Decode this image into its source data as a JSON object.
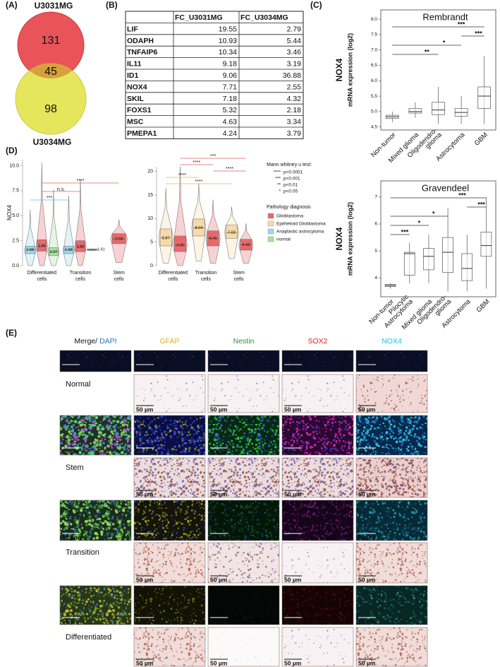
{
  "panel_labels": {
    "a": "(A)",
    "b": "(B)",
    "c": "(C)",
    "d": "(D)",
    "e": "(E)"
  },
  "venn": {
    "sets": [
      {
        "name": "U3031MG",
        "color": "#e8545a",
        "only": 131
      },
      {
        "name": "U3034MG",
        "color": "#e6e65c",
        "only": 98
      }
    ],
    "overlap": 45,
    "overlap_color": "#d8a03a"
  },
  "table": {
    "columns": [
      "FC_U3031MG",
      "FC_U3034MG"
    ],
    "rows": [
      {
        "gene": "LIF",
        "values": [
          19.55,
          2.79
        ]
      },
      {
        "gene": "ODAPH",
        "values": [
          10.93,
          5.44
        ]
      },
      {
        "gene": "TNFAIP6",
        "values": [
          10.34,
          3.46
        ]
      },
      {
        "gene": "IL11",
        "values": [
          9.18,
          3.19
        ]
      },
      {
        "gene": "ID1",
        "values": [
          9.06,
          36.88
        ]
      },
      {
        "gene": "NOX4",
        "values": [
          7.71,
          2.55
        ]
      },
      {
        "gene": "SKIL",
        "values": [
          7.18,
          4.32
        ]
      },
      {
        "gene": "FOXS1",
        "values": [
          5.32,
          2.18
        ]
      },
      {
        "gene": "MSC",
        "values": [
          4.63,
          3.34
        ]
      },
      {
        "gene": "PMEPA1",
        "values": [
          4.24,
          3.79
        ]
      }
    ]
  },
  "chart_data": [
    {
      "type": "violin",
      "ylabel": "NOX4",
      "ylim": [
        0,
        10.6
      ],
      "yticks": [
        {
          "value": 0,
          "label": "0.0"
        },
        {
          "value": 2.5,
          "label": "2.5"
        },
        {
          "value": 5,
          "label": "5.0"
        },
        {
          "value": 7.5,
          "label": "7.5"
        },
        {
          "value": 10,
          "label": "10.0"
        }
      ],
      "categories": [
        [
          "Differentiated",
          "cells"
        ],
        [
          "Transition",
          "cells"
        ],
        [
          "Stem",
          "cells"
        ]
      ],
      "violins": [
        {
          "category": 0,
          "series": 2,
          "min": 0,
          "q1": 1.2,
          "median": 1.58,
          "q3": 1.95,
          "max": 5.6
        },
        {
          "category": 0,
          "series": 0,
          "min": 0,
          "q1": 1.45,
          "median": 1.96,
          "q3": 2.6,
          "max": 10.3
        },
        {
          "category": 0,
          "series": 3,
          "min": 0,
          "q1": 1.0,
          "median": 1.37,
          "q3": 1.8,
          "max": 7.6
        },
        {
          "category": 1,
          "series": 2,
          "min": 0,
          "q1": 1.2,
          "median": 1.58,
          "q3": 1.95,
          "max": 7.0
        },
        {
          "category": 1,
          "series": 0,
          "min": 0,
          "q1": 1.4,
          "median": 1.89,
          "q3": 2.5,
          "max": 8.6
        },
        {
          "category": 1,
          "series": 3,
          "min": 1.5,
          "q1": 1.55,
          "median": 1.61,
          "q3": 1.67,
          "max": 1.7
        },
        {
          "category": 2,
          "series": 0,
          "min": 0.3,
          "q1": 2.2,
          "median": 2.68,
          "q3": 3.2,
          "max": 4.6
        }
      ],
      "comparisons": [
        {
          "from": 1,
          "to": 6,
          "label": "****",
          "color": "#e06262"
        },
        {
          "from": 1,
          "to": 4,
          "label": "n.s.",
          "color": "#e06262"
        },
        {
          "from": 0,
          "to": 3,
          "label": "***",
          "color": "#4cc4e0"
        }
      ]
    },
    {
      "type": "violin",
      "ylim": [
        0,
        21
      ],
      "yticks": [
        0,
        5,
        10,
        15,
        20
      ],
      "categories": [
        [
          "Differentiated",
          "cells"
        ],
        [
          "Transition",
          "cells"
        ],
        [
          "Stem",
          "cells"
        ]
      ],
      "violins": [
        {
          "category": 0,
          "series": 1,
          "min": 0.5,
          "q1": 4.2,
          "median": 5.87,
          "q3": 7.8,
          "max": 16.5
        },
        {
          "category": 0,
          "series": 0,
          "min": 0,
          "q1": 3.0,
          "median": 4.36,
          "q3": 6.3,
          "max": 21
        },
        {
          "category": 1,
          "series": 1,
          "min": 1,
          "q1": 6.3,
          "median": 8.04,
          "q3": 9.9,
          "max": 17.5
        },
        {
          "category": 1,
          "series": 0,
          "min": 0.5,
          "q1": 4.2,
          "median": 5.76,
          "q3": 7.4,
          "max": 14
        },
        {
          "category": 2,
          "series": 1,
          "min": 1.5,
          "q1": 5.8,
          "median": 7.02,
          "q3": 8.6,
          "max": 12.5
        },
        {
          "category": 2,
          "series": 0,
          "min": 0.5,
          "q1": 3.3,
          "median": 4.42,
          "q3": 5.6,
          "max": 9
        }
      ],
      "comparisons": [
        {
          "from": 1,
          "to": 5,
          "label": "***",
          "color": "#e06262"
        },
        {
          "from": 1,
          "to": 3,
          "label": "****",
          "color": "#e06262"
        },
        {
          "from": 3,
          "to": 5,
          "label": "****",
          "color": "#e06262"
        },
        {
          "from": 0,
          "to": 2,
          "label": "****",
          "color": "#eeb040"
        },
        {
          "from": 0,
          "to": 4,
          "label": "****",
          "color": "#eeb040"
        }
      ]
    },
    {
      "type": "box",
      "title": "Rembrandt",
      "ylabel": "NOX4",
      "ylabel2": "mRNA expression (log2)",
      "ylim": [
        4.4,
        8.3
      ],
      "yticks": [
        {
          "value": 4.5,
          "label": "4.5"
        },
        {
          "value": 5,
          "label": "5.0"
        },
        {
          "value": 5.5,
          "label": "5.5"
        },
        {
          "value": 6,
          "label": "6.0"
        },
        {
          "value": 6.5,
          "label": "6.5"
        },
        {
          "value": 7,
          "label": "7.0"
        },
        {
          "value": 7.5,
          "label": "7.5"
        },
        {
          "value": 8,
          "label": "8.0"
        }
      ],
      "categories": [
        [
          "Non-tumor"
        ],
        [
          "Mixed glioma"
        ],
        [
          "Oligodendro-",
          "glioma"
        ],
        [
          "Astrocytoma"
        ],
        [
          "GBM"
        ]
      ],
      "boxes": [
        {
          "low": 4.65,
          "q1": 4.78,
          "median": 4.83,
          "q3": 4.88,
          "high": 5.0
        },
        {
          "low": 4.8,
          "q1": 4.95,
          "median": 5.0,
          "q3": 5.1,
          "high": 5.3
        },
        {
          "low": 4.6,
          "q1": 4.9,
          "median": 5.05,
          "q3": 5.3,
          "high": 5.8
        },
        {
          "low": 4.6,
          "q1": 4.85,
          "median": 4.97,
          "q3": 5.1,
          "high": 5.5
        },
        {
          "low": 4.6,
          "q1": 5.1,
          "median": 5.5,
          "q3": 5.8,
          "high": 6.8
        }
      ],
      "comparisons": [
        {
          "from": 0,
          "to": 4,
          "label": "***"
        },
        {
          "from": 3,
          "to": 4,
          "label": "***"
        },
        {
          "from": 0,
          "to": 3,
          "label": "*"
        },
        {
          "from": 0,
          "to": 2,
          "label": "**"
        }
      ]
    },
    {
      "type": "box",
      "title": "Gravendeel",
      "ylabel": "NOX4",
      "ylabel2": "mRNA expression (log2)",
      "ylim": [
        3.3,
        7.6
      ],
      "yticks": [
        4,
        5,
        6,
        7
      ],
      "categories": [
        [
          "Non-tumor"
        ],
        [
          "Pilocytic",
          "Astrocytoma"
        ],
        [
          "Mixed glioma"
        ],
        [
          "Oligodendro-",
          "glioma"
        ],
        [
          "Astrocytoma"
        ],
        [
          "GBM"
        ]
      ],
      "boxes": [
        {
          "low": 3.6,
          "q1": 3.68,
          "median": 3.72,
          "q3": 3.76,
          "high": 3.8
        },
        {
          "low": 3.8,
          "q1": 4.1,
          "median": 4.9,
          "q3": 4.95,
          "high": 5.3
        },
        {
          "low": 3.8,
          "q1": 4.3,
          "median": 4.8,
          "q3": 5.1,
          "high": 5.6
        },
        {
          "low": 3.5,
          "q1": 4.2,
          "median": 4.95,
          "q3": 5.5,
          "high": 6.6
        },
        {
          "low": 3.5,
          "q1": 3.9,
          "median": 4.35,
          "q3": 4.9,
          "high": 5.6
        },
        {
          "low": 3.6,
          "q1": 4.8,
          "median": 5.2,
          "q3": 5.7,
          "high": 7.0
        }
      ],
      "comparisons": [
        {
          "from": 0,
          "to": 5,
          "label": "***"
        },
        {
          "from": 4,
          "to": 5,
          "label": "***"
        },
        {
          "from": 0,
          "to": 3,
          "label": "*"
        },
        {
          "from": 0,
          "to": 2,
          "label": "*"
        },
        {
          "from": 0,
          "to": 1,
          "label": "***"
        }
      ]
    }
  ],
  "legend": {
    "test_title": "Mann whitney u test:",
    "tests": [
      {
        "stars": "****",
        "label": "p<0.0001"
      },
      {
        "stars": "***",
        "label": "p<0.001"
      },
      {
        "stars": "**",
        "label": "p<0.01"
      },
      {
        "stars": "*",
        "label": "p<0.05"
      }
    ],
    "pathology_title": "Pathology diagnosis",
    "pathology": [
      {
        "name": "Glioblastoma",
        "color": "#e8686a"
      },
      {
        "name": "Epithelioid Glioblastoma",
        "color": "#f6dba8"
      },
      {
        "name": "Anaplastic astrocytoma",
        "color": "#9fd7e8"
      },
      {
        "name": "normal",
        "color": "#a6e29c"
      }
    ]
  },
  "staining": {
    "columns": [
      [
        {
          "text": "Merge/",
          "color": "#111111"
        },
        {
          "text": "DAPI",
          "color": "#2a78d0"
        }
      ],
      [
        {
          "text": "GFAP",
          "color": "#e4b020"
        }
      ],
      [
        {
          "text": "Nestin",
          "color": "#1e9a3a"
        }
      ],
      [
        {
          "text": "SOX2",
          "color": "#e0201c"
        }
      ],
      [
        {
          "text": "NOX4",
          "color": "#1cc4e0"
        }
      ]
    ],
    "rows": [
      "Normal",
      "Stem",
      "Transition",
      "Differentiated"
    ],
    "scale_bar": "50 µm"
  }
}
